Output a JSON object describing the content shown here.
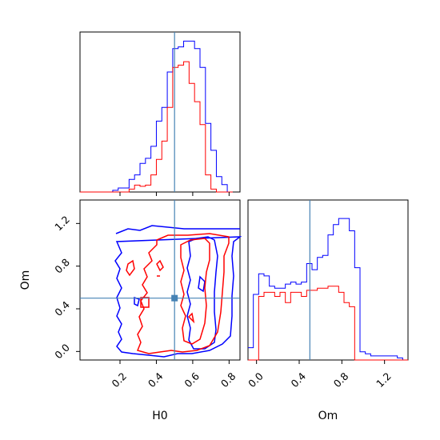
{
  "chart_data": {
    "type": "corner",
    "parameters": [
      "H0",
      "Om"
    ],
    "truths": {
      "H0": 0.5,
      "Om": 0.5
    },
    "colors": {
      "blue": "#0000ff",
      "red": "#ff0000",
      "truth": "#4682b4"
    },
    "panels": [
      {
        "id": "hist-H0",
        "type": "histogram",
        "xlim": [
          -0.02,
          0.86
        ],
        "bins": {
          "start": -0.02,
          "width": 0.03
        },
        "series": [
          {
            "color": "#0000ff",
            "values": [
              0,
              0,
              0,
              0,
              0,
              0,
              0.3,
              0.7,
              0.7,
              2.2,
              3,
              5,
              5.9,
              8,
              12.4,
              14.8,
              21,
              25.1,
              25.4,
              26.4,
              26.4,
              25.1,
              21.8,
              12,
              7.3,
              2.7,
              1.3,
              0
            ]
          },
          {
            "color": "#ff0000",
            "values": [
              0,
              0,
              0,
              0,
              0,
              0,
              0,
              0,
              0,
              0.5,
              1.2,
              1,
              1.2,
              3,
              5.7,
              8.9,
              14.8,
              21.8,
              22.2,
              22.8,
              19,
              15.8,
              11.8,
              3,
              0.5,
              0,
              0,
              0
            ]
          }
        ],
        "truth_x": 0.5,
        "xticks": [
          0.2,
          0.4,
          0.6,
          0.8
        ],
        "ymax": 28
      },
      {
        "id": "contour-H0-Om",
        "type": "contour",
        "xlim": [
          -0.02,
          0.86
        ],
        "ylim": [
          -0.08,
          1.42
        ],
        "xticks": [
          0.2,
          0.4,
          0.6,
          0.8
        ],
        "xtick_labels": [
          "0.2",
          "0.4",
          "0.6",
          "0.8"
        ],
        "yticks": [
          0.0,
          0.4,
          0.8,
          1.2
        ],
        "ytick_labels": [
          "0.0",
          "0.4",
          "0.8",
          "1.2"
        ],
        "xlabel": "H0",
        "ylabel": "Om",
        "truth": [
          0.5,
          0.5
        ]
      },
      {
        "id": "hist-Om",
        "type": "histogram",
        "xlim": [
          -0.08,
          1.42
        ],
        "bins": {
          "start": -0.08,
          "width": 0.05
        },
        "series": [
          {
            "color": "#0000ff",
            "values": [
              0.6,
              3.2,
              4.2,
              4.1,
              3.6,
              3.5,
              3.5,
              3.7,
              3.8,
              3.7,
              3.8,
              4.7,
              4.4,
              5,
              5.1,
              6.1,
              6.6,
              6.9,
              6.9,
              6.3,
              4.5,
              0.4,
              0.3,
              0.2,
              0.2,
              0.2,
              0.2,
              0.2,
              0.1,
              0
            ]
          },
          {
            "color": "#ff0000",
            "values": [
              0,
              0,
              3.1,
              3.3,
              3.3,
              3.1,
              3.3,
              2.8,
              3.3,
              3.3,
              3.1,
              3.4,
              3.4,
              3.5,
              3.5,
              3.6,
              3.6,
              3.3,
              2.8,
              2.6,
              0,
              0,
              0,
              0,
              0,
              0,
              0,
              0,
              0,
              0
            ]
          }
        ],
        "truth_x": 0.5,
        "xticks": [
          0.0,
          0.4,
          0.8,
          1.2
        ],
        "xtick_labels": [
          "0.0",
          "0.4",
          "0.8",
          "1.2"
        ],
        "xlabel": "Om",
        "ymax": 7.8
      }
    ]
  }
}
